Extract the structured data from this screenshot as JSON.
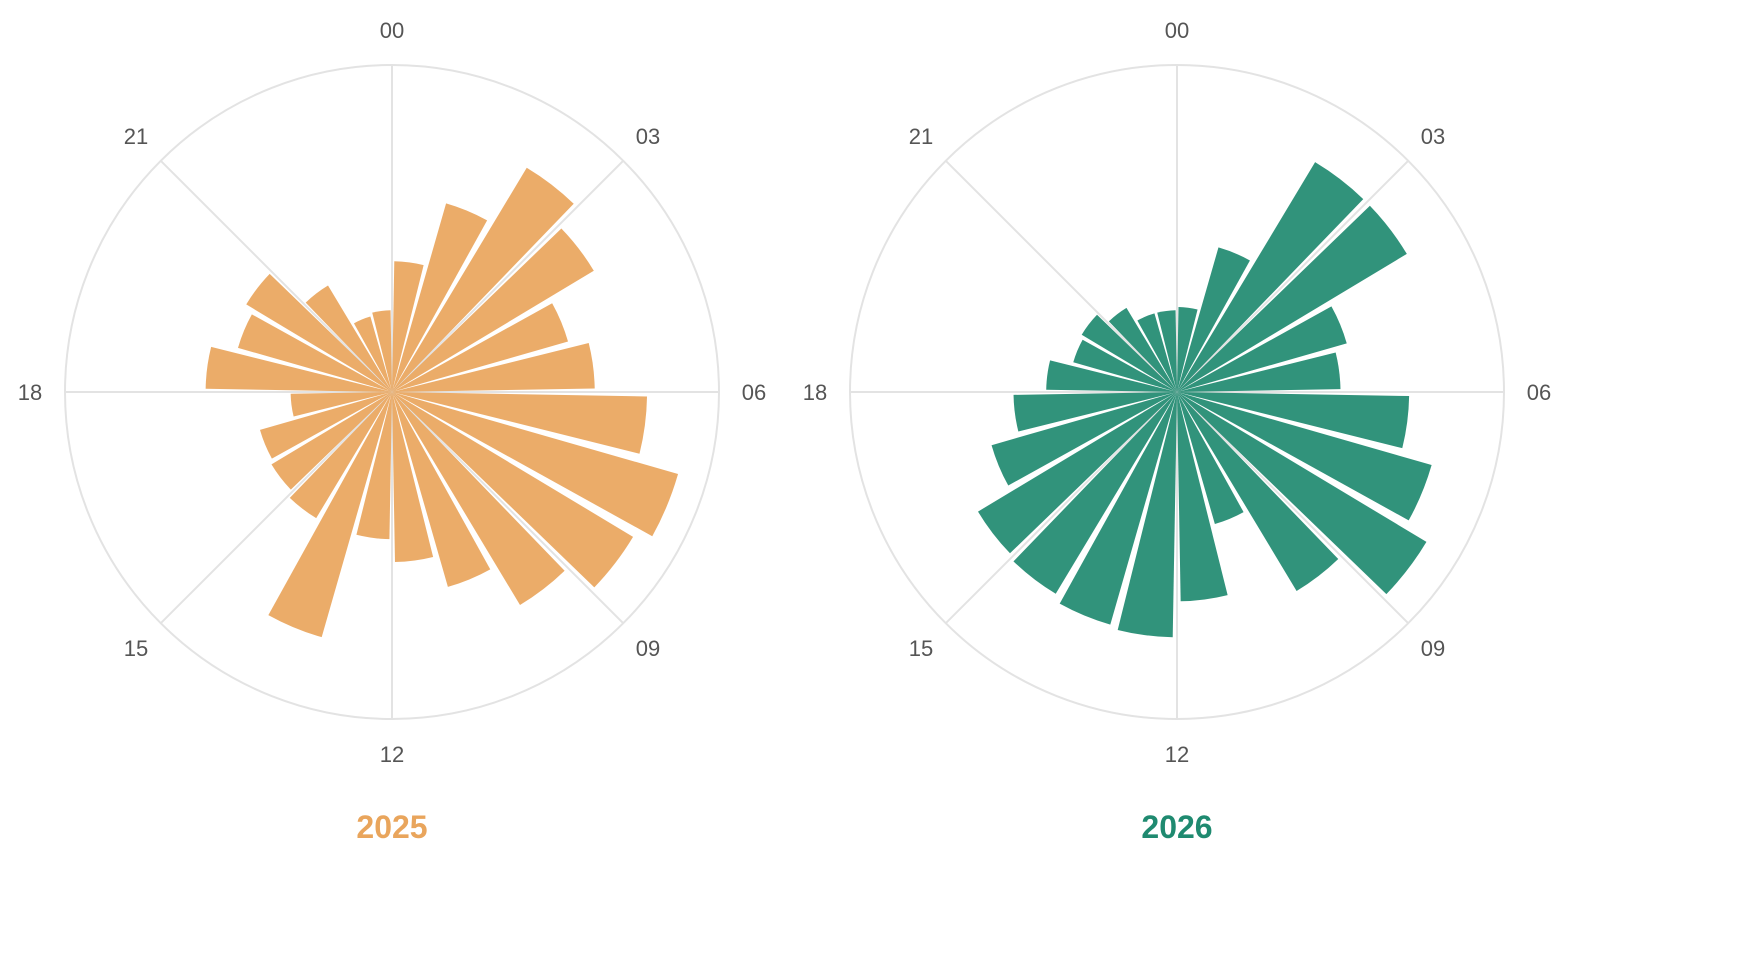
{
  "chart_data": [
    {
      "type": "bar",
      "subtype": "polar-radial",
      "title": "2025",
      "color": "#E9A55C",
      "angular_labels": [
        "00",
        "03",
        "06",
        "09",
        "12",
        "15",
        "18",
        "21"
      ],
      "categories": [
        "0",
        "1",
        "2",
        "3",
        "4",
        "5",
        "6",
        "7",
        "8",
        "9",
        "10",
        "11",
        "12",
        "13",
        "14",
        "15",
        "16",
        "17",
        "18",
        "19",
        "20",
        "21",
        "22",
        "23"
      ],
      "values": [
        0.4,
        0.6,
        0.8,
        0.72,
        0.56,
        0.62,
        0.78,
        0.91,
        0.86,
        0.76,
        0.62,
        0.52,
        0.45,
        0.78,
        0.45,
        0.43,
        0.42,
        0.31,
        0.57,
        0.49,
        0.52,
        0.38,
        0.24,
        0.25
      ],
      "rlim": [
        0,
        1
      ],
      "grid": true
    },
    {
      "type": "bar",
      "subtype": "polar-radial",
      "title": "2026",
      "color": "#1F8A70",
      "angular_labels": [
        "00",
        "03",
        "06",
        "09",
        "12",
        "15",
        "18",
        "21"
      ],
      "categories": [
        "0",
        "1",
        "2",
        "3",
        "4",
        "5",
        "6",
        "7",
        "8",
        "9",
        "10",
        "11",
        "12",
        "13",
        "14",
        "15",
        "16",
        "17",
        "18",
        "19",
        "20",
        "21",
        "22",
        "23"
      ],
      "values": [
        0.26,
        0.46,
        0.82,
        0.82,
        0.54,
        0.5,
        0.71,
        0.81,
        0.89,
        0.71,
        0.42,
        0.64,
        0.75,
        0.74,
        0.72,
        0.71,
        0.59,
        0.5,
        0.4,
        0.33,
        0.34,
        0.3,
        0.25,
        0.25
      ],
      "rlim": [
        0,
        1
      ],
      "grid": true
    }
  ]
}
